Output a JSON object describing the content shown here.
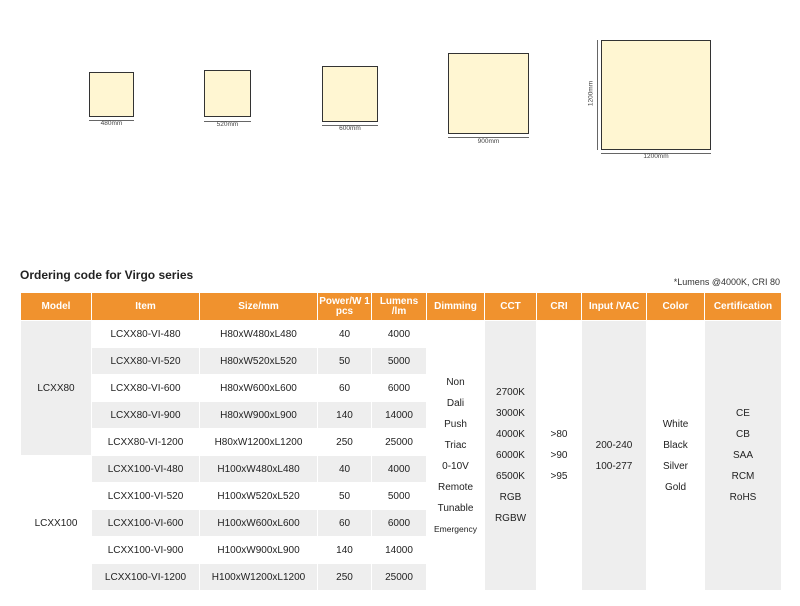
{
  "panels": [
    {
      "size_label": "480mm"
    },
    {
      "size_label": "520mm"
    },
    {
      "size_label": "600mm"
    },
    {
      "size_label": "900mm"
    },
    {
      "size_label": "1200mm",
      "height_label": "1200mm"
    }
  ],
  "section_title": "Ordering code for Virgo series",
  "note": "*Lumens @4000K, CRI 80",
  "headers": {
    "model": "Model",
    "item": "Item",
    "size": "Size/mm",
    "power": "Power/W 1 pcs",
    "lumens": "Lumens /lm",
    "dimming": "Dimming",
    "cct": "CCT",
    "cri": "CRI",
    "input": "Input /VAC",
    "color": "Color",
    "certification": "Certification"
  },
  "models": [
    "LCXX80",
    "LCXX100"
  ],
  "rows": [
    {
      "item": "LCXX80-VI-480",
      "size": "H80xW480xL480",
      "power": "40",
      "lumens": "4000"
    },
    {
      "item": "LCXX80-VI-520",
      "size": "H80xW520xL520",
      "power": "50",
      "lumens": "5000"
    },
    {
      "item": "LCXX80-VI-600",
      "size": "H80xW600xL600",
      "power": "60",
      "lumens": "6000"
    },
    {
      "item": "LCXX80-VI-900",
      "size": "H80xW900xL900",
      "power": "140",
      "lumens": "14000"
    },
    {
      "item": "LCXX80-VI-1200",
      "size": "H80xW1200xL1200",
      "power": "250",
      "lumens": "25000"
    },
    {
      "item": "LCXX100-VI-480",
      "size": "H100xW480xL480",
      "power": "40",
      "lumens": "4000"
    },
    {
      "item": "LCXX100-VI-520",
      "size": "H100xW520xL520",
      "power": "50",
      "lumens": "5000"
    },
    {
      "item": "LCXX100-VI-600",
      "size": "H100xW600xL600",
      "power": "60",
      "lumens": "6000"
    },
    {
      "item": "LCXX100-VI-900",
      "size": "H100xW900xL900",
      "power": "140",
      "lumens": "14000"
    },
    {
      "item": "LCXX100-VI-1200",
      "size": "H100xW1200xL1200",
      "power": "250",
      "lumens": "25000"
    }
  ],
  "dimming": [
    "Non",
    "Dali",
    "Push",
    "Triac",
    "0-10V",
    "Remote",
    "Tunable",
    "Emergency"
  ],
  "cct": [
    "2700K",
    "3000K",
    "4000K",
    "6000K",
    "6500K",
    "RGB",
    "RGBW"
  ],
  "cri": [
    ">80",
    ">90",
    ">95"
  ],
  "input": [
    "200-240",
    "100-277"
  ],
  "color": [
    "White",
    "Black",
    "Silver",
    "Gold"
  ],
  "certification": [
    "CE",
    "CB",
    "SAA",
    "RCM",
    "RoHS"
  ]
}
